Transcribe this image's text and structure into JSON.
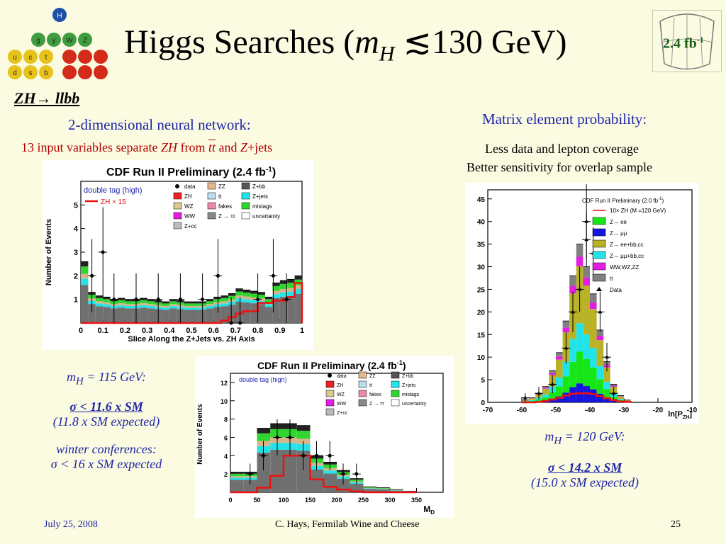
{
  "slide": {
    "title_prefix": "Higgs Searches (",
    "title_mh": "m",
    "title_mh_sub": "H",
    "title_rest": " ≲130 GeV)",
    "lumi": "2.4 fb",
    "lumi_sup": "-1",
    "channel": "ZH→ llbb",
    "nn_heading": "2-dimensional neural network:",
    "nn_detail_a": "13 input variables separate ",
    "nn_detail_b": "ZH",
    "nn_detail_c": " from ",
    "nn_detail_d": "tt",
    "nn_detail_e": " and ",
    "nn_detail_f": "Z",
    "nn_detail_g": "+jets",
    "me_heading": "Matrix element probability:",
    "me_line1": "Less data and lepton coverage",
    "me_line2": "Better sensitivity for overlap sample"
  },
  "results_left": {
    "mass_label": "m",
    "mass_sub": "H",
    "mass_value": " = 115 GeV:",
    "limit": "σ < 11.6 x SM",
    "expected": "(11.8 x SM expected)",
    "winter_label": "winter conferences:",
    "winter_value": "σ < 16 x SM expected"
  },
  "results_right": {
    "mass_label": "m",
    "mass_sub": "H",
    "mass_value": " = 120 GeV:",
    "limit": "σ < 14.2 x SM",
    "expected": "(15.0 x SM expected)"
  },
  "footer": {
    "date": "July 25, 2008",
    "author": "C. Hays, Fermilab Wine and Cheese",
    "page": "25"
  },
  "logo": {
    "letters": [
      "H",
      "g",
      "γ",
      "W",
      "Z",
      "u",
      "c",
      "t",
      "d",
      "s",
      "b"
    ]
  },
  "chart_data": [
    {
      "type": "bar",
      "title": "CDF Run II Preliminary (2.4 fb",
      "title_sup": "-1",
      "title_close": ")",
      "tag": "double tag (high)",
      "xlabel": "Slice Along the Z+Jets vs. ZH Axis",
      "ylabel": "Number of Events",
      "xlim": [
        0,
        1
      ],
      "ylim": [
        0,
        6
      ],
      "xticks": [
        "0",
        "0.1",
        "0.2",
        "0.3",
        "0.4",
        "0.5",
        "0.6",
        "0.7",
        "0.8",
        "0.9",
        "1"
      ],
      "yticks": [
        "1",
        "2",
        "3",
        "4",
        "5"
      ],
      "legend": [
        "data",
        "ZZ",
        "Z+bb",
        "ZH",
        "tt",
        "Z+jets",
        "WZ",
        "fakes",
        "mistags",
        "WW",
        "Z → ττ",
        "uncertainty",
        "Z+cc"
      ],
      "signal_label": "ZH × 15",
      "background_total": [
        2.6,
        1.3,
        1.15,
        1.1,
        1.0,
        1.05,
        1.0,
        1.0,
        1.05,
        1.0,
        0.95,
        0.9,
        1.0,
        0.95,
        0.9,
        0.9,
        0.9,
        1.0,
        1.1,
        1.15,
        1.25,
        1.45,
        1.4,
        1.35,
        1.3,
        1.1,
        1.7,
        1.8,
        1.85,
        2.0
      ],
      "signal_x15": [
        0,
        0,
        0,
        0,
        0,
        0,
        0,
        0,
        0,
        0,
        0,
        0,
        0,
        0,
        0,
        0,
        0,
        0,
        0,
        0.1,
        0.25,
        0.4,
        0.5,
        0.5,
        0.85,
        0.85,
        0.95,
        0.95,
        1.1,
        1.7
      ],
      "data_x": [
        0.05,
        0.1,
        0.15,
        0.25,
        0.35,
        0.45,
        0.55,
        0.62,
        0.68,
        0.72,
        0.8,
        0.87,
        0.93
      ],
      "data_y": [
        2.0,
        3.0,
        1.0,
        1.0,
        1.0,
        1.0,
        1.0,
        2.0,
        0,
        0,
        1.0,
        2.0,
        1.0
      ]
    },
    {
      "type": "bar",
      "title": "CDF Run II Preliminary (2.4 fb",
      "title_sup": "-1",
      "title_close": ")",
      "tag": "double tag (high)",
      "xlabel": "M",
      "xlabel_sub": "D",
      "ylabel": "Number of Events",
      "xlim": [
        0,
        400
      ],
      "ylim": [
        0,
        13
      ],
      "xticks": [
        "0",
        "50",
        "100",
        "150",
        "200",
        "250",
        "300",
        "350"
      ],
      "yticks": [
        "2",
        "4",
        "6",
        "8",
        "10",
        "12"
      ],
      "legend": [
        "data",
        "ZZ",
        "Z+bb",
        "ZH",
        "tt",
        "Z+jets",
        "WZ",
        "fakes",
        "mistags",
        "WW",
        "Z → ττ",
        "uncertainty",
        "Z+cc"
      ],
      "bin_edges": [
        0,
        25,
        50,
        75,
        100,
        125,
        150,
        175,
        200,
        225,
        250,
        275,
        300,
        325,
        350
      ],
      "background_total": [
        2.2,
        2.2,
        7.0,
        7.5,
        7.5,
        7.3,
        4.0,
        3.3,
        2.4,
        1.5,
        0.6,
        0.5,
        0.3,
        0.1
      ],
      "signal_x15": [
        0,
        0,
        0.5,
        1.8,
        4.0,
        4.0,
        1.4,
        0.6,
        0.3,
        0.1,
        0,
        0,
        0,
        0
      ],
      "data_x": [
        37,
        62,
        88,
        112,
        137,
        162,
        187,
        212,
        237
      ],
      "data_y": [
        2,
        4,
        6,
        6,
        4,
        4,
        4,
        2,
        2
      ]
    },
    {
      "type": "bar",
      "title": "CDF Run II Preliminary (2.0 fb",
      "title_sup": "-1",
      "title_close": ")",
      "xlabel": "ln[P",
      "xlabel_sub": "ZH",
      "xlabel_close": "]",
      "ylabel": "",
      "xlim": [
        -70,
        -10
      ],
      "ylim": [
        0,
        47
      ],
      "xticks": [
        "-70",
        "-60",
        "-50",
        "-40",
        "-30",
        "-20",
        "-10"
      ],
      "yticks": [
        "0",
        "5",
        "10",
        "15",
        "20",
        "25",
        "30",
        "35",
        "40",
        "45"
      ],
      "legend": [
        "10× ZH (M  =120 GeV)",
        "Z→ ee",
        "Z→ μμ",
        "Z→ ee+bb,cc",
        "Z→ μμ+bb,cc",
        "WW,WZ,ZZ",
        "tt",
        "Data"
      ],
      "bin_edges": [
        -60,
        -58,
        -56,
        -54,
        -52,
        -50,
        -48,
        -46,
        -44,
        -42,
        -40,
        -38,
        -36,
        -34,
        -32,
        -30,
        -28
      ],
      "background_total": [
        0.5,
        1.0,
        2.0,
        3.5,
        7.0,
        11.0,
        18.0,
        28.0,
        35.0,
        30.0,
        24.0,
        16.0,
        9.0,
        4.0,
        1.5,
        0.5
      ],
      "signal_x10": [
        0,
        0,
        0.1,
        0.3,
        0.6,
        1.0,
        1.5,
        1.9,
        2.0,
        2.0,
        1.8,
        1.4,
        0.9,
        0.5,
        0.2,
        0.1
      ],
      "data_x": [
        -59,
        -55,
        -51,
        -47,
        -45,
        -43,
        -41,
        -39,
        -37,
        -35,
        -33
      ],
      "data_y": [
        1,
        2,
        4,
        12,
        20,
        25,
        36,
        33,
        20,
        10,
        2
      ],
      "outlier_point": [
        -41,
        40
      ]
    }
  ]
}
